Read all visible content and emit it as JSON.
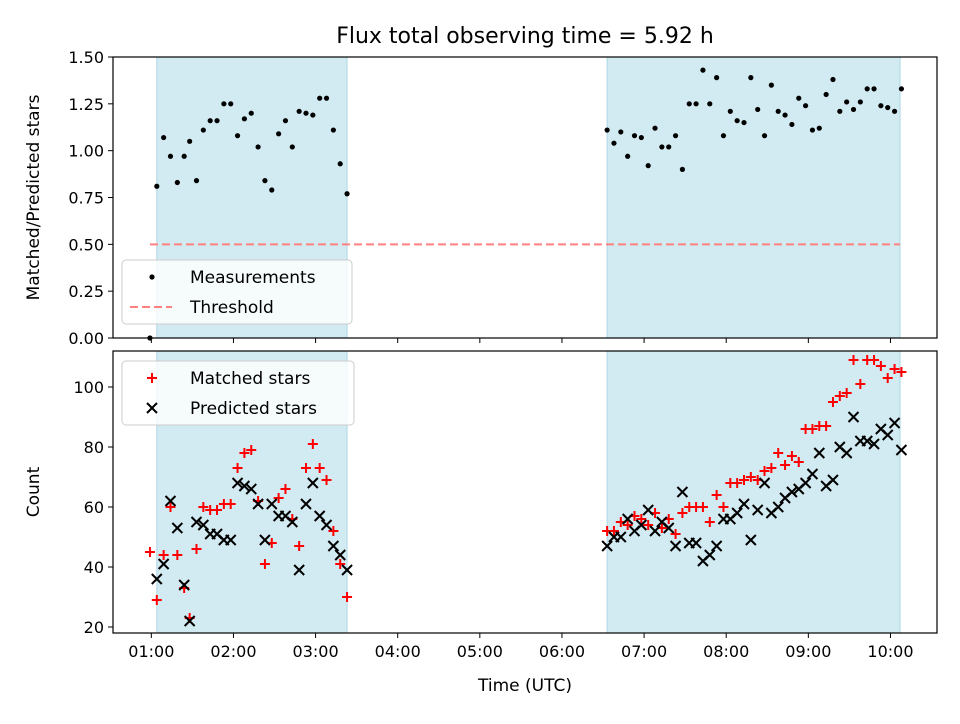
{
  "figure": {
    "title": "Flux total observing time = 5.92 h",
    "xlabel": "Time (UTC)"
  },
  "chart_data": [
    {
      "type": "scatter",
      "ylabel": "Matched/Predicted stars",
      "xlabel": "Time (UTC)",
      "xlim": [
        "00:32",
        "10:34"
      ],
      "ylim": [
        0,
        1.5
      ],
      "yticks": [
        0.0,
        0.25,
        0.5,
        0.75,
        1.0,
        1.25,
        1.5
      ],
      "ytick_labels": [
        "0.00",
        "0.25",
        "0.50",
        "0.75",
        "1.00",
        "1.25",
        "1.50"
      ],
      "grid": false,
      "legend_position": "lower left",
      "observing_windows": [
        [
          "01:04",
          "03:23"
        ],
        [
          "06:33",
          "10:07"
        ]
      ],
      "window_color": "#add8e6",
      "series": [
        {
          "name": "Measurements",
          "marker": "dot",
          "color": "#000000",
          "points": [
            [
              "00:59",
              0.0
            ],
            [
              "01:04",
              0.81
            ],
            [
              "01:09",
              1.07
            ],
            [
              "01:14",
              0.97
            ],
            [
              "01:19",
              0.83
            ],
            [
              "01:24",
              0.97
            ],
            [
              "01:28",
              1.05
            ],
            [
              "01:33",
              0.84
            ],
            [
              "01:38",
              1.11
            ],
            [
              "01:43",
              1.16
            ],
            [
              "01:48",
              1.16
            ],
            [
              "01:53",
              1.25
            ],
            [
              "01:58",
              1.25
            ],
            [
              "02:03",
              1.08
            ],
            [
              "02:08",
              1.17
            ],
            [
              "02:13",
              1.2
            ],
            [
              "02:18",
              1.02
            ],
            [
              "02:23",
              0.84
            ],
            [
              "02:28",
              0.79
            ],
            [
              "02:33",
              1.09
            ],
            [
              "02:38",
              1.16
            ],
            [
              "02:43",
              1.02
            ],
            [
              "02:48",
              1.21
            ],
            [
              "02:53",
              1.2
            ],
            [
              "02:58",
              1.19
            ],
            [
              "03:03",
              1.28
            ],
            [
              "03:08",
              1.28
            ],
            [
              "03:13",
              1.11
            ],
            [
              "03:18",
              0.93
            ],
            [
              "03:23",
              0.77
            ],
            [
              "06:33",
              1.11
            ],
            [
              "06:38",
              1.04
            ],
            [
              "06:43",
              1.1
            ],
            [
              "06:48",
              0.97
            ],
            [
              "06:53",
              1.08
            ],
            [
              "06:58",
              1.07
            ],
            [
              "07:03",
              0.92
            ],
            [
              "07:08",
              1.12
            ],
            [
              "07:13",
              1.02
            ],
            [
              "07:18",
              1.02
            ],
            [
              "07:23",
              1.08
            ],
            [
              "07:28",
              0.9
            ],
            [
              "07:33",
              1.25
            ],
            [
              "07:38",
              1.25
            ],
            [
              "07:43",
              1.43
            ],
            [
              "07:48",
              1.25
            ],
            [
              "07:53",
              1.39
            ],
            [
              "07:58",
              1.08
            ],
            [
              "08:03",
              1.21
            ],
            [
              "08:08",
              1.16
            ],
            [
              "08:13",
              1.15
            ],
            [
              "08:18",
              1.39
            ],
            [
              "08:23",
              1.22
            ],
            [
              "08:28",
              1.08
            ],
            [
              "08:33",
              1.35
            ],
            [
              "08:38",
              1.21
            ],
            [
              "08:43",
              1.19
            ],
            [
              "08:48",
              1.14
            ],
            [
              "08:53",
              1.28
            ],
            [
              "08:58",
              1.24
            ],
            [
              "09:03",
              1.11
            ],
            [
              "09:08",
              1.12
            ],
            [
              "09:13",
              1.3
            ],
            [
              "09:18",
              1.38
            ],
            [
              "09:23",
              1.21
            ],
            [
              "09:28",
              1.26
            ],
            [
              "09:33",
              1.22
            ],
            [
              "09:38",
              1.26
            ],
            [
              "09:43",
              1.33
            ],
            [
              "09:48",
              1.33
            ],
            [
              "09:53",
              1.24
            ],
            [
              "09:58",
              1.23
            ],
            [
              "10:03",
              1.21
            ],
            [
              "10:08",
              1.33
            ]
          ]
        },
        {
          "name": "Threshold",
          "type": "line",
          "style": "dashed",
          "color": "#ff8080",
          "x": [
            "00:59",
            "10:07"
          ],
          "y": [
            0.5,
            0.5
          ]
        }
      ]
    },
    {
      "type": "scatter",
      "ylabel": "Count",
      "xlabel": "Time (UTC)",
      "xlim": [
        "00:32",
        "10:34"
      ],
      "ylim": [
        18,
        112
      ],
      "yticks": [
        20,
        40,
        60,
        80,
        100
      ],
      "ytick_labels": [
        "20",
        "40",
        "60",
        "80",
        "100"
      ],
      "xticks": [
        "01:00",
        "02:00",
        "03:00",
        "04:00",
        "05:00",
        "06:00",
        "07:00",
        "08:00",
        "09:00",
        "10:00"
      ],
      "xtick_labels": [
        "01:00",
        "02:00",
        "03:00",
        "04:00",
        "05:00",
        "06:00",
        "07:00",
        "08:00",
        "09:00",
        "10:00"
      ],
      "grid": false,
      "legend_position": "upper left",
      "observing_windows": [
        [
          "01:04",
          "03:23"
        ],
        [
          "06:33",
          "10:07"
        ]
      ],
      "window_color": "#add8e6",
      "series": [
        {
          "name": "Matched stars",
          "marker": "plus",
          "color": "#ff0000",
          "points": [
            [
              "00:59",
              45
            ],
            [
              "01:04",
              29
            ],
            [
              "01:09",
              44
            ],
            [
              "01:14",
              60
            ],
            [
              "01:19",
              44
            ],
            [
              "01:24",
              33
            ],
            [
              "01:28",
              23
            ],
            [
              "01:33",
              46
            ],
            [
              "01:38",
              60
            ],
            [
              "01:43",
              59
            ],
            [
              "01:48",
              59
            ],
            [
              "01:53",
              61
            ],
            [
              "01:58",
              61
            ],
            [
              "02:03",
              73
            ],
            [
              "02:08",
              78
            ],
            [
              "02:13",
              79
            ],
            [
              "02:18",
              62
            ],
            [
              "02:23",
              41
            ],
            [
              "02:28",
              48
            ],
            [
              "02:33",
              63
            ],
            [
              "02:38",
              66
            ],
            [
              "02:43",
              56
            ],
            [
              "02:48",
              47
            ],
            [
              "02:53",
              73
            ],
            [
              "02:58",
              81
            ],
            [
              "03:03",
              73
            ],
            [
              "03:08",
              69
            ],
            [
              "03:13",
              52
            ],
            [
              "03:18",
              41
            ],
            [
              "03:23",
              30
            ],
            [
              "06:33",
              52
            ],
            [
              "06:38",
              52
            ],
            [
              "06:43",
              55
            ],
            [
              "06:48",
              54
            ],
            [
              "06:53",
              57
            ],
            [
              "06:58",
              56
            ],
            [
              "07:03",
              54
            ],
            [
              "07:08",
              58
            ],
            [
              "07:13",
              53
            ],
            [
              "07:18",
              56
            ],
            [
              "07:23",
              51
            ],
            [
              "07:28",
              58
            ],
            [
              "07:33",
              60
            ],
            [
              "07:38",
              60
            ],
            [
              "07:43",
              60
            ],
            [
              "07:48",
              55
            ],
            [
              "07:53",
              64
            ],
            [
              "07:58",
              60
            ],
            [
              "08:03",
              68
            ],
            [
              "08:08",
              68
            ],
            [
              "08:13",
              69
            ],
            [
              "08:18",
              70
            ],
            [
              "08:23",
              69
            ],
            [
              "08:28",
              72
            ],
            [
              "08:33",
              73
            ],
            [
              "08:38",
              78
            ],
            [
              "08:43",
              74
            ],
            [
              "08:48",
              77
            ],
            [
              "08:53",
              75
            ],
            [
              "08:58",
              86
            ],
            [
              "09:03",
              86
            ],
            [
              "09:08",
              87
            ],
            [
              "09:13",
              87
            ],
            [
              "09:18",
              95
            ],
            [
              "09:23",
              97
            ],
            [
              "09:28",
              98
            ],
            [
              "09:33",
              109
            ],
            [
              "09:38",
              101
            ],
            [
              "09:43",
              109
            ],
            [
              "09:48",
              109
            ],
            [
              "09:53",
              107
            ],
            [
              "09:58",
              103
            ],
            [
              "10:03",
              106
            ],
            [
              "10:08",
              105
            ]
          ]
        },
        {
          "name": "Predicted stars",
          "marker": "x",
          "color": "#000000",
          "points": [
            [
              "01:04",
              36
            ],
            [
              "01:09",
              41
            ],
            [
              "01:14",
              62
            ],
            [
              "01:19",
              53
            ],
            [
              "01:24",
              34
            ],
            [
              "01:28",
              22
            ],
            [
              "01:33",
              55
            ],
            [
              "01:38",
              54
            ],
            [
              "01:43",
              51
            ],
            [
              "01:48",
              51
            ],
            [
              "01:53",
              49
            ],
            [
              "01:58",
              49
            ],
            [
              "02:03",
              68
            ],
            [
              "02:08",
              67
            ],
            [
              "02:13",
              66
            ],
            [
              "02:18",
              61
            ],
            [
              "02:23",
              49
            ],
            [
              "02:28",
              61
            ],
            [
              "02:33",
              57
            ],
            [
              "02:38",
              57
            ],
            [
              "02:43",
              55
            ],
            [
              "02:48",
              39
            ],
            [
              "02:53",
              61
            ],
            [
              "02:58",
              68
            ],
            [
              "03:03",
              57
            ],
            [
              "03:08",
              54
            ],
            [
              "03:13",
              47
            ],
            [
              "03:18",
              44
            ],
            [
              "03:23",
              39
            ],
            [
              "06:33",
              47
            ],
            [
              "06:38",
              50
            ],
            [
              "06:43",
              50
            ],
            [
              "06:48",
              56
            ],
            [
              "06:53",
              52
            ],
            [
              "06:58",
              54
            ],
            [
              "07:03",
              59
            ],
            [
              "07:08",
              52
            ],
            [
              "07:13",
              55
            ],
            [
              "07:18",
              53
            ],
            [
              "07:23",
              47
            ],
            [
              "07:28",
              65
            ],
            [
              "07:33",
              48
            ],
            [
              "07:38",
              48
            ],
            [
              "07:43",
              42
            ],
            [
              "07:48",
              44
            ],
            [
              "07:53",
              47
            ],
            [
              "07:58",
              56
            ],
            [
              "08:03",
              56
            ],
            [
              "08:08",
              58
            ],
            [
              "08:13",
              61
            ],
            [
              "08:18",
              49
            ],
            [
              "08:23",
              59
            ],
            [
              "08:28",
              68
            ],
            [
              "08:33",
              58
            ],
            [
              "08:38",
              60
            ],
            [
              "08:43",
              63
            ],
            [
              "08:48",
              65
            ],
            [
              "08:53",
              66
            ],
            [
              "08:58",
              68
            ],
            [
              "09:03",
              71
            ],
            [
              "09:08",
              78
            ],
            [
              "09:13",
              67
            ],
            [
              "09:18",
              69
            ],
            [
              "09:23",
              80
            ],
            [
              "09:28",
              78
            ],
            [
              "09:33",
              90
            ],
            [
              "09:38",
              82
            ],
            [
              "09:43",
              82
            ],
            [
              "09:48",
              81
            ],
            [
              "09:53",
              86
            ],
            [
              "09:58",
              84
            ],
            [
              "10:03",
              88
            ],
            [
              "10:08",
              79
            ]
          ]
        }
      ]
    }
  ]
}
